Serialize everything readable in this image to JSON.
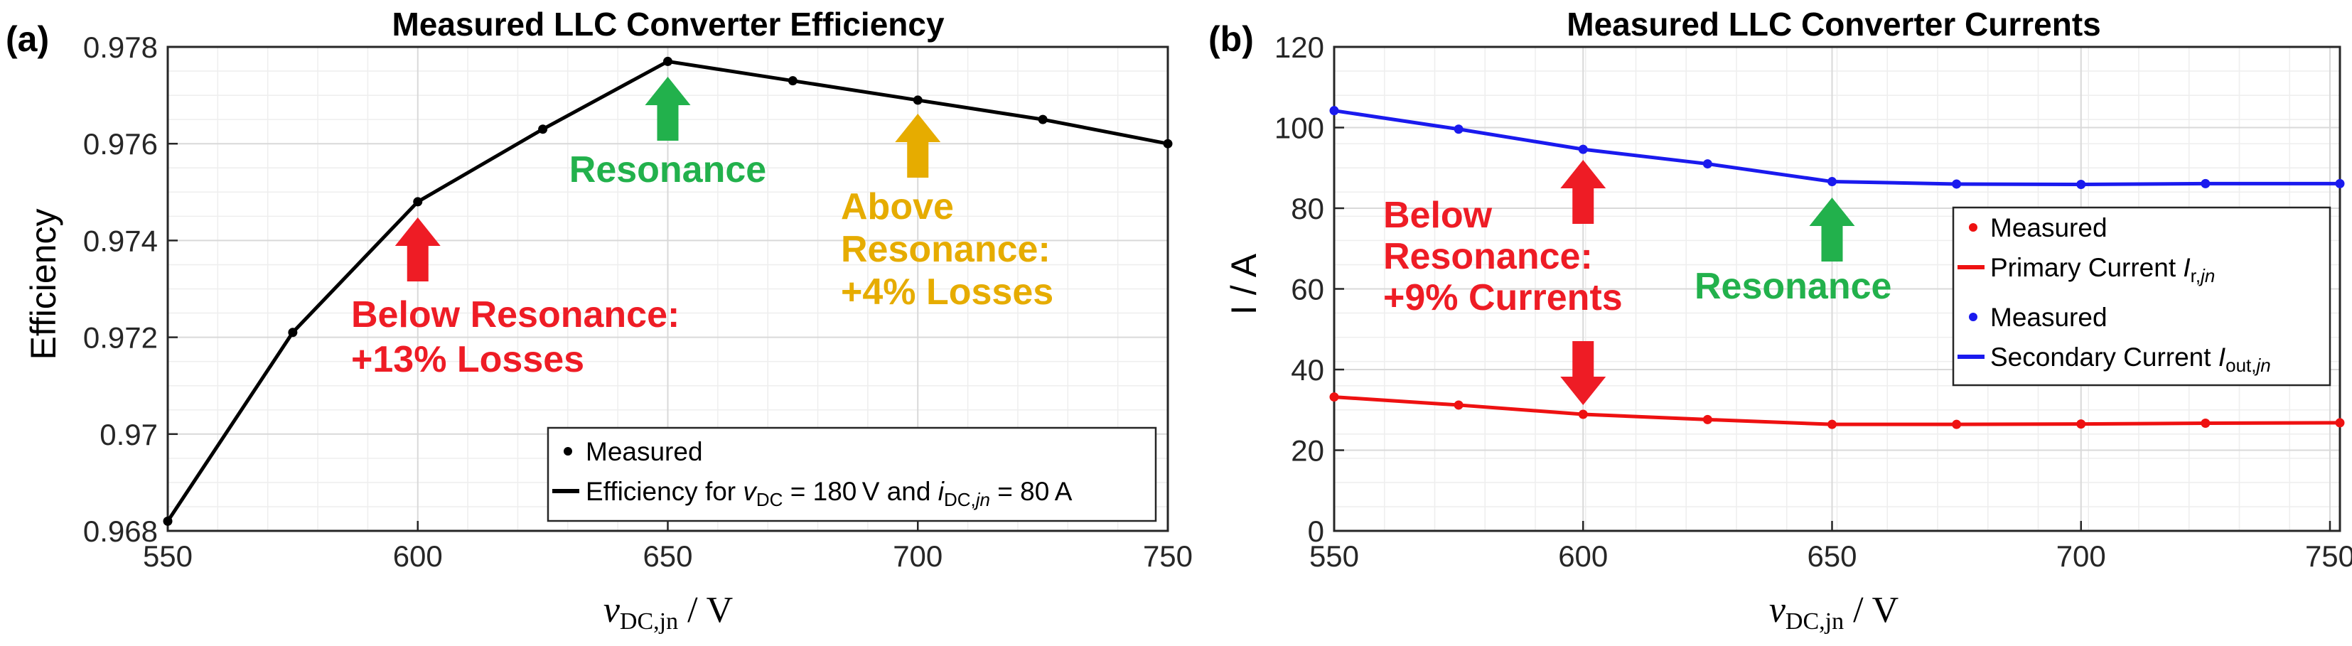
{
  "chart_data": [
    {
      "type": "line",
      "panel_label": "(a)",
      "title": "Measured LLC Converter Efficiency",
      "xlabel_main": "v",
      "xlabel_sub": "DC,jn",
      "xlabel_unit": " / V",
      "ylabel": "Efficiency",
      "xlim": [
        550,
        750
      ],
      "ylim": [
        0.968,
        0.978
      ],
      "x_ticks": [
        550,
        600,
        650,
        700,
        750
      ],
      "x_tick_labels": [
        "550",
        "600",
        "650",
        "700",
        "750"
      ],
      "y_ticks": [
        0.968,
        0.97,
        0.972,
        0.974,
        0.976,
        0.978
      ],
      "y_tick_labels": [
        "0.968",
        "0.97",
        "0.972",
        "0.974",
        "0.976",
        "0.978"
      ],
      "grid": true,
      "series": [
        {
          "name": "Efficiency for vDC = 180 V and iDC,jn = 80 A",
          "color": "#000000",
          "x": [
            550,
            575,
            600,
            625,
            650,
            675,
            700,
            725,
            750
          ],
          "y": [
            0.9682,
            0.9721,
            0.9748,
            0.9763,
            0.9777,
            0.9773,
            0.9769,
            0.9765,
            0.976
          ]
        }
      ],
      "legend": {
        "position": "bottom-right",
        "marker_label": "Measured",
        "line_label_prefix": "Efficiency for ",
        "line_label_v": "v",
        "line_label_v_sub": "DC",
        "line_label_mid": " = 180 V and ",
        "line_label_i": "i",
        "line_label_i_sub": "DC,",
        "line_label_i_sub_italic": "jn",
        "line_label_end": " = 80 A"
      },
      "annotations": [
        {
          "text_lines": [
            "Resonance"
          ],
          "color": "#22b14c",
          "arrow_x": 650,
          "arrow_y": 0.977,
          "arrow_dir": "up"
        },
        {
          "text_lines": [
            "Above",
            "Resonance:",
            "+4% Losses"
          ],
          "color": "#e6ac00",
          "arrow_x": 700,
          "arrow_y": 0.9761,
          "arrow_dir": "up"
        },
        {
          "text_lines": [
            "Below Resonance:",
            "+13% Losses"
          ],
          "color": "#ee1c25",
          "arrow_x": 600,
          "arrow_y": 0.974,
          "arrow_dir": "up"
        }
      ]
    },
    {
      "type": "line",
      "panel_label": "(b)",
      "title": "Measured LLC Converter Currents",
      "xlabel_main": "v",
      "xlabel_sub": "DC,jn",
      "xlabel_unit": " / V",
      "ylabel": "I / A",
      "xlim": [
        550,
        752
      ],
      "ylim": [
        0,
        120
      ],
      "x_ticks": [
        550,
        600,
        650,
        700,
        750
      ],
      "x_tick_labels": [
        "550",
        "600",
        "650",
        "700",
        "750"
      ],
      "y_ticks": [
        0,
        20,
        40,
        60,
        80,
        100,
        120
      ],
      "y_tick_labels": [
        "0",
        "20",
        "40",
        "60",
        "80",
        "100",
        "120"
      ],
      "grid": true,
      "series": [
        {
          "name": "Primary Current Ir,jn",
          "color": "#ee1111",
          "x": [
            550,
            575,
            600,
            625,
            650,
            675,
            700,
            725,
            752
          ],
          "y": [
            33.2,
            31.2,
            28.9,
            27.6,
            26.4,
            26.4,
            26.5,
            26.7,
            26.8
          ]
        },
        {
          "name": "Secondary Current Iout,jn",
          "color": "#1a1aee",
          "x": [
            550,
            575,
            600,
            625,
            650,
            675,
            700,
            725,
            752
          ],
          "y": [
            104.2,
            99.6,
            94.6,
            91.0,
            86.6,
            86.0,
            85.9,
            86.1,
            86.1
          ]
        }
      ],
      "legend": {
        "position": "right",
        "entries": [
          {
            "kind": "marker",
            "color": "#ee1111",
            "label": "Measured"
          },
          {
            "kind": "line",
            "color": "#ee1111",
            "label": "Primary Current ",
            "sym": "I",
            "sub": "r,",
            "sub_italic": "jn"
          },
          {
            "kind": "marker",
            "color": "#1a1aee",
            "label": "Measured"
          },
          {
            "kind": "line",
            "color": "#1a1aee",
            "label": "Secondary Current ",
            "sym": "I",
            "sub": "out,",
            "sub_italic": "jn"
          }
        ]
      },
      "annotations": [
        {
          "text_lines": [
            "Below",
            "Resonance:",
            "+9% Currents"
          ],
          "color": "#ee1c25"
        },
        {
          "text_lines": [
            "Resonance"
          ],
          "color": "#22b14c"
        }
      ]
    }
  ]
}
